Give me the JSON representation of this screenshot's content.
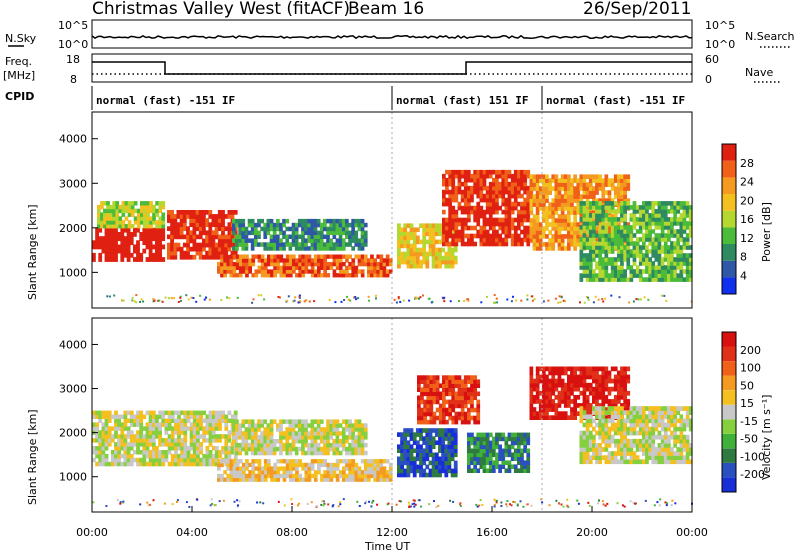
{
  "header": {
    "title": "Christmas Valley West (fitACF)",
    "beam": "Beam 16",
    "date": "26/Sep/2011"
  },
  "top_panels": {
    "nsky_label": "N.Sky",
    "nsky_ticks": [
      "10^5",
      "10^0"
    ],
    "nsearch_label": "N.Search",
    "nsearch_ticks": [
      "10^5",
      "10^0"
    ],
    "freq_label": "Freq.",
    "freq_unit": "[MHz]",
    "freq_ticks": [
      "18",
      "8"
    ],
    "nave_label": "Nave",
    "nave_ticks": [
      "60",
      "0"
    ],
    "cpid_label": "CPID",
    "cpid_segments": [
      {
        "label": "normal (fast) -151 IF",
        "start_h": 0,
        "end_h": 12
      },
      {
        "label": "normal (fast) 151 IF",
        "start_h": 12,
        "end_h": 18
      },
      {
        "label": "normal (fast) -151 IF",
        "start_h": 18,
        "end_h": 24
      }
    ]
  },
  "colorbars": {
    "power": {
      "label": "Power [dB]",
      "ticks": [
        "28",
        "24",
        "20",
        "16",
        "12",
        "8",
        "4"
      ],
      "colors": [
        "#1030f0",
        "#2f57a8",
        "#2e8a60",
        "#4bbb3a",
        "#b5d830",
        "#f4c020",
        "#f49a20",
        "#f06018",
        "#e02010"
      ]
    },
    "velocity": {
      "label": "Velocity [m s⁻¹]",
      "ticks": [
        "200",
        "100",
        "50",
        "15",
        "-15",
        "-50",
        "-100",
        "-200"
      ],
      "colors": [
        "#1a2ed8",
        "#2a4fc0",
        "#2e7a40",
        "#3fb03a",
        "#86d040",
        "#c8c8c8",
        "#f4c020",
        "#f49a20",
        "#f06018",
        "#e03018",
        "#d81010"
      ]
    }
  },
  "chart_data": [
    {
      "type": "heatmap",
      "name": "Power",
      "ylabel": "Slant Range [km]",
      "ylim": [
        200,
        4600
      ],
      "xlim": [
        0,
        24
      ],
      "yticks": [
        "4000",
        "3000",
        "2000",
        "1000"
      ],
      "regions": [
        {
          "t0": 0.0,
          "t1": 2.9,
          "r0": 1250,
          "r1": 2000,
          "level": 9
        },
        {
          "t0": 0.2,
          "t1": 2.9,
          "r0": 2000,
          "r1": 2600,
          "level": 4
        },
        {
          "t0": 3.0,
          "t1": 5.8,
          "r0": 1300,
          "r1": 2400,
          "level": 8
        },
        {
          "t0": 5.0,
          "t1": 12.0,
          "r0": 900,
          "r1": 1400,
          "level": 7
        },
        {
          "t0": 5.6,
          "t1": 11.0,
          "r0": 1500,
          "r1": 2200,
          "level": 2
        },
        {
          "t0": 12.2,
          "t1": 14.6,
          "r0": 1100,
          "r1": 2100,
          "level": 5
        },
        {
          "t0": 14.0,
          "t1": 17.5,
          "r0": 1600,
          "r1": 3300,
          "level": 8
        },
        {
          "t0": 17.5,
          "t1": 21.5,
          "r0": 1500,
          "r1": 3200,
          "level": 6
        },
        {
          "t0": 19.5,
          "t1": 24.0,
          "r0": 800,
          "r1": 2600,
          "level": 3
        }
      ]
    },
    {
      "type": "heatmap",
      "name": "Velocity",
      "ylabel": "Slant Range [km]",
      "xlabel": "Time UT",
      "ylim": [
        200,
        4600
      ],
      "xlim": [
        0,
        24
      ],
      "yticks": [
        "4000",
        "3000",
        "2000",
        "1000"
      ],
      "xticks": [
        "00:00",
        "04:00",
        "08:00",
        "12:00",
        "16:00",
        "20:00",
        "00:00"
      ],
      "regions": [
        {
          "t0": 0.0,
          "t1": 5.8,
          "r0": 1250,
          "r1": 2500,
          "level": 5
        },
        {
          "t0": 5.0,
          "t1": 12.0,
          "r0": 900,
          "r1": 1400,
          "level": 6
        },
        {
          "t0": 5.6,
          "t1": 11.0,
          "r0": 1500,
          "r1": 2300,
          "level": 5
        },
        {
          "t0": 12.2,
          "t1": 14.6,
          "r0": 1000,
          "r1": 2100,
          "level": 1
        },
        {
          "t0": 13.0,
          "t1": 15.5,
          "r0": 2200,
          "r1": 3300,
          "level": 9
        },
        {
          "t0": 15.0,
          "t1": 17.5,
          "r0": 1100,
          "r1": 2000,
          "level": 2
        },
        {
          "t0": 17.5,
          "t1": 21.5,
          "r0": 2300,
          "r1": 3500,
          "level": 10
        },
        {
          "t0": 19.5,
          "t1": 24.0,
          "r0": 1300,
          "r1": 2600,
          "level": 5
        }
      ]
    }
  ]
}
